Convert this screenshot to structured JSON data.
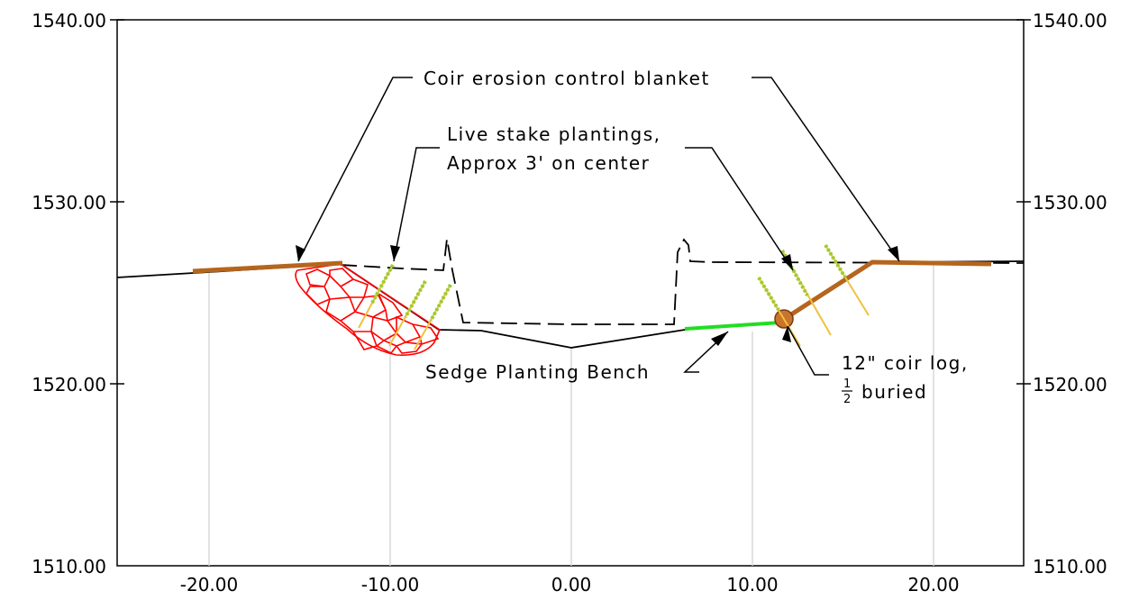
{
  "axes": {
    "y_left": [
      "1540.00",
      "1530.00",
      "1520.00",
      "1510.00"
    ],
    "y_right": [
      "1540.00",
      "1530.00",
      "1520.00",
      "1510.00"
    ],
    "x": [
      "-20.00",
      "-10.00",
      "0.00",
      "10.00",
      "20.00"
    ]
  },
  "annotations": {
    "coir_blanket": "Coir erosion control blanket",
    "live_stake_line1": "Live stake plantings,",
    "live_stake_line2": "Approx 3' on center",
    "sedge_bench": "Sedge Planting Bench",
    "coir_log_line1": "12\" coir log,",
    "coir_log_frac_num": "1",
    "coir_log_frac_den": "2",
    "coir_log_line2": "buried"
  },
  "colors": {
    "existing_ground": "#000000",
    "proposed_ground": "#000000",
    "coir_blanket": "#b5651d",
    "riprap": "#ff0000",
    "live_stake": "#9acd32",
    "stake_shaft": "#f0c040",
    "sedge_bench": "#22dd22",
    "grid": "#d9d9d9"
  }
}
